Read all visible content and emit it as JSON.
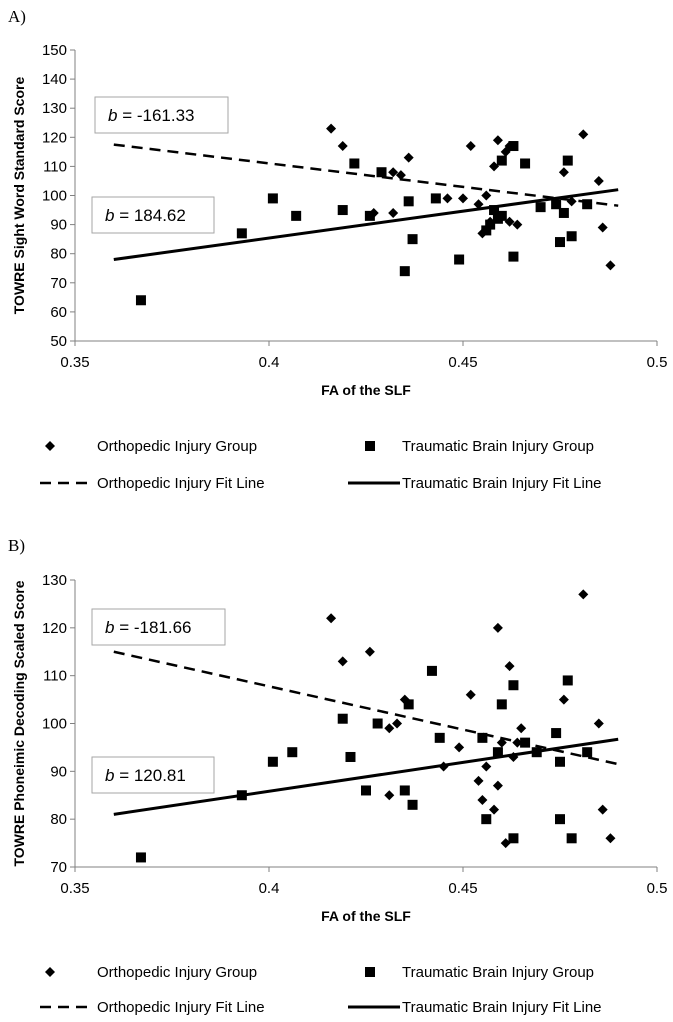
{
  "chart_data": [
    {
      "panel_label": "A)",
      "type": "scatter",
      "xlabel": "FA of the SLF",
      "ylabel": "TOWRE Sight Word Standard Score",
      "xlim": [
        0.35,
        0.5
      ],
      "ylim": [
        50,
        150
      ],
      "x_ticks": [
        0.35,
        0.4,
        0.45,
        0.5
      ],
      "x_tick_labels": [
        "0.35",
        "0.4",
        "0.45",
        "0.5"
      ],
      "y_ticks": [
        50,
        60,
        70,
        80,
        90,
        100,
        110,
        120,
        130,
        140,
        150
      ],
      "y_tick_labels": [
        "50",
        "60",
        "70",
        "80",
        "90",
        "100",
        "110",
        "120",
        "130",
        "140",
        "150"
      ],
      "grid": false,
      "series": [
        {
          "name": "Orthopedic Injury Group",
          "marker": "diamond",
          "points": [
            [
              0.416,
              123
            ],
            [
              0.419,
              117
            ],
            [
              0.427,
              94
            ],
            [
              0.432,
              94
            ],
            [
              0.432,
              108
            ],
            [
              0.434,
              107
            ],
            [
              0.436,
              113
            ],
            [
              0.446,
              99
            ],
            [
              0.45,
              99
            ],
            [
              0.452,
              117
            ],
            [
              0.454,
              97
            ],
            [
              0.455,
              87
            ],
            [
              0.456,
              100
            ],
            [
              0.457,
              91
            ],
            [
              0.458,
              110
            ],
            [
              0.459,
              119
            ],
            [
              0.461,
              115
            ],
            [
              0.462,
              117
            ],
            [
              0.462,
              91
            ],
            [
              0.464,
              90
            ],
            [
              0.476,
              108
            ],
            [
              0.478,
              98
            ],
            [
              0.481,
              121
            ],
            [
              0.485,
              105
            ],
            [
              0.486,
              89
            ],
            [
              0.488,
              76
            ]
          ]
        },
        {
          "name": "Traumatic Brain Injury Group",
          "marker": "square",
          "points": [
            [
              0.367,
              64
            ],
            [
              0.393,
              87
            ],
            [
              0.401,
              99
            ],
            [
              0.407,
              93
            ],
            [
              0.419,
              95
            ],
            [
              0.422,
              111
            ],
            [
              0.426,
              93
            ],
            [
              0.429,
              108
            ],
            [
              0.435,
              74
            ],
            [
              0.436,
              98
            ],
            [
              0.437,
              85
            ],
            [
              0.443,
              99
            ],
            [
              0.449,
              78
            ],
            [
              0.456,
              88
            ],
            [
              0.457,
              90
            ],
            [
              0.458,
              95
            ],
            [
              0.459,
              92
            ],
            [
              0.46,
              112
            ],
            [
              0.46,
              93
            ],
            [
              0.463,
              117
            ],
            [
              0.463,
              79
            ],
            [
              0.466,
              111
            ],
            [
              0.47,
              96
            ],
            [
              0.474,
              97
            ],
            [
              0.475,
              84
            ],
            [
              0.476,
              94
            ],
            [
              0.477,
              112
            ],
            [
              0.478,
              86
            ],
            [
              0.482,
              97
            ]
          ]
        }
      ],
      "fit_lines": [
        {
          "name": "Orthopedic Injury Fit Line",
          "style": "dashed",
          "x": [
            0.36,
            0.49
          ],
          "y": [
            117.5,
            96.5
          ]
        },
        {
          "name": "Traumatic Brain Injury Fit Line",
          "style": "solid",
          "x": [
            0.36,
            0.49
          ],
          "y": [
            78,
            102
          ]
        }
      ],
      "annotations": [
        {
          "var": "b",
          "text": " = -161.33"
        },
        {
          "var": "b",
          "text": " = 184.62"
        }
      ],
      "legend": {
        "placement": "bottom",
        "entries": [
          "Orthopedic Injury Group",
          "Traumatic Brain Injury Group",
          "Orthopedic Injury Fit Line",
          "Traumatic Brain Injury Fit Line"
        ]
      }
    },
    {
      "panel_label": "B)",
      "type": "scatter",
      "xlabel": "FA of the SLF",
      "ylabel": "TOWRE Phoneimic Decoding Scaled Score",
      "xlim": [
        0.35,
        0.5
      ],
      "ylim": [
        70,
        130
      ],
      "x_ticks": [
        0.35,
        0.4,
        0.45,
        0.5
      ],
      "x_tick_labels": [
        "0.35",
        "0.4",
        "0.45",
        "0.5"
      ],
      "y_ticks": [
        70,
        80,
        90,
        100,
        110,
        120,
        130
      ],
      "y_tick_labels": [
        "70",
        "80",
        "90",
        "100",
        "110",
        "120",
        "130"
      ],
      "grid": false,
      "series": [
        {
          "name": "Orthopedic Injury Group",
          "marker": "diamond",
          "points": [
            [
              0.416,
              122
            ],
            [
              0.419,
              113
            ],
            [
              0.426,
              115
            ],
            [
              0.431,
              99
            ],
            [
              0.431,
              85
            ],
            [
              0.433,
              100
            ],
            [
              0.435,
              105
            ],
            [
              0.445,
              91
            ],
            [
              0.449,
              95
            ],
            [
              0.452,
              106
            ],
            [
              0.454,
              88
            ],
            [
              0.455,
              84
            ],
            [
              0.456,
              91
            ],
            [
              0.458,
              82
            ],
            [
              0.459,
              120
            ],
            [
              0.459,
              87
            ],
            [
              0.46,
              96
            ],
            [
              0.461,
              75
            ],
            [
              0.462,
              112
            ],
            [
              0.463,
              93
            ],
            [
              0.464,
              96
            ],
            [
              0.465,
              99
            ],
            [
              0.476,
              105
            ],
            [
              0.481,
              127
            ],
            [
              0.485,
              100
            ],
            [
              0.486,
              82
            ],
            [
              0.488,
              76
            ]
          ]
        },
        {
          "name": "Traumatic Brain Injury Group",
          "marker": "square",
          "points": [
            [
              0.367,
              72
            ],
            [
              0.393,
              85
            ],
            [
              0.401,
              92
            ],
            [
              0.406,
              94
            ],
            [
              0.419,
              101
            ],
            [
              0.421,
              93
            ],
            [
              0.425,
              86
            ],
            [
              0.428,
              100
            ],
            [
              0.435,
              86
            ],
            [
              0.436,
              104
            ],
            [
              0.437,
              83
            ],
            [
              0.442,
              111
            ],
            [
              0.444,
              97
            ],
            [
              0.455,
              97
            ],
            [
              0.456,
              80
            ],
            [
              0.459,
              94
            ],
            [
              0.46,
              104
            ],
            [
              0.463,
              108
            ],
            [
              0.463,
              76
            ],
            [
              0.466,
              96
            ],
            [
              0.469,
              94
            ],
            [
              0.474,
              98
            ],
            [
              0.475,
              80
            ],
            [
              0.475,
              92
            ],
            [
              0.477,
              109
            ],
            [
              0.478,
              76
            ],
            [
              0.482,
              94
            ]
          ]
        }
      ],
      "fit_lines": [
        {
          "name": "Orthopedic Injury Fit Line",
          "style": "dashed",
          "x": [
            0.36,
            0.49
          ],
          "y": [
            115,
            91.5
          ]
        },
        {
          "name": "Traumatic Brain Injury Fit Line",
          "style": "solid",
          "x": [
            0.36,
            0.49
          ],
          "y": [
            81,
            96.7
          ]
        }
      ],
      "annotations": [
        {
          "var": "b",
          "text": " = -181.66"
        },
        {
          "var": "b",
          "text": " = 120.81"
        }
      ],
      "legend": {
        "placement": "bottom",
        "entries": [
          "Orthopedic Injury Group",
          "Traumatic Brain Injury Group",
          "Orthopedic Injury Fit Line",
          "Traumatic Brain Injury Fit Line"
        ]
      }
    }
  ]
}
